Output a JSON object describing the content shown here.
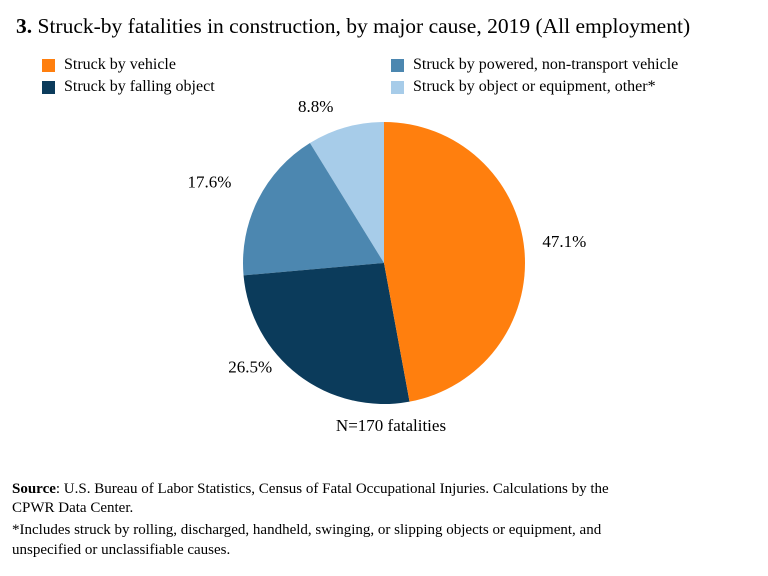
{
  "chart_data": {
    "type": "pie",
    "title_number": "3.",
    "title": "Struck-by fatalities in construction, by major cause, 2019 (All employment)",
    "slices": [
      {
        "name": "Struck by vehicle",
        "value": 47.1,
        "label": "47.1%",
        "color": "#FF7F0E"
      },
      {
        "name": "Struck by falling object",
        "value": 26.5,
        "label": "26.5%",
        "color": "#0B3B5B"
      },
      {
        "name": "Struck by powered, non-transport vehicle",
        "value": 17.6,
        "label": "17.6%",
        "color": "#4C87B0"
      },
      {
        "name": "Struck by object or equipment, other*",
        "value": 8.8,
        "label": "8.8%",
        "color": "#A7CCE9"
      }
    ],
    "start": "top, clockwise",
    "legend_placement": "top",
    "annotation": "N=170 fatalities"
  },
  "source": {
    "label": "Source",
    "text": ": U.S. Bureau of Labor Statistics, Census of Fatal Occupational Injuries. Calculations by the",
    "text2": "CPWR Data Center."
  },
  "footnote": {
    "line1": "*Includes struck by rolling, discharged, handheld, swinging, or slipping objects or equipment, and",
    "line2": "unspecified or unclassifiable causes."
  }
}
